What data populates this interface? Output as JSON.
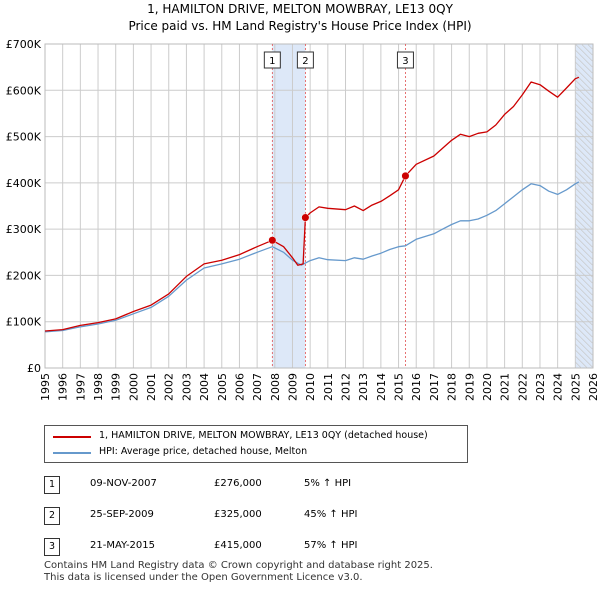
{
  "title": "1, HAMILTON DRIVE, MELTON MOWBRAY, LE13 0QY",
  "subtitle": "Price paid vs. HM Land Registry's House Price Index (HPI)",
  "colors": {
    "property": "#cc0000",
    "hpi": "#6699cc",
    "shade": "#dde8f8",
    "grid": "#cccccc"
  },
  "chart_data": {
    "type": "line",
    "title": "1, HAMILTON DRIVE, MELTON MOWBRAY, LE13 0QY",
    "subtitle": "Price paid vs. HM Land Registry's House Price Index (HPI)",
    "xlim": [
      1995,
      2026
    ],
    "ylim": [
      0,
      700000
    ],
    "y_ticks": [
      0,
      100000,
      200000,
      300000,
      400000,
      500000,
      600000,
      700000
    ],
    "y_tick_labels": [
      "£0",
      "£100K",
      "£200K",
      "£300K",
      "£400K",
      "£500K",
      "£600K",
      "£700K"
    ],
    "x_ticks": [
      "1995",
      "1996",
      "1997",
      "1998",
      "1999",
      "2000",
      "2001",
      "2002",
      "2003",
      "2004",
      "2005",
      "2006",
      "2007",
      "2008",
      "2009",
      "2010",
      "2011",
      "2012",
      "2013",
      "2014",
      "2015",
      "2016",
      "2017",
      "2018",
      "2019",
      "2020",
      "2021",
      "2022",
      "2023",
      "2024",
      "2025",
      "2026"
    ],
    "grid": true,
    "shaded_ranges": [
      [
        2007.86,
        2009.73
      ],
      [
        2025.0,
        2026.0
      ]
    ],
    "series": [
      {
        "name": "1, HAMILTON DRIVE, MELTON MOWBRAY, LE13 0QY (detached house)",
        "points": [
          [
            1995.0,
            80000
          ],
          [
            1996.0,
            83000
          ],
          [
            1997.0,
            92000
          ],
          [
            1998.0,
            98000
          ],
          [
            1999.0,
            106000
          ],
          [
            2000.0,
            122000
          ],
          [
            2001.0,
            136000
          ],
          [
            2002.0,
            160000
          ],
          [
            2003.0,
            198000
          ],
          [
            2004.0,
            225000
          ],
          [
            2005.0,
            233000
          ],
          [
            2006.0,
            245000
          ],
          [
            2007.0,
            262000
          ],
          [
            2007.86,
            276000
          ],
          [
            2008.5,
            262000
          ],
          [
            2009.0,
            238000
          ],
          [
            2009.3,
            222000
          ],
          [
            2009.6,
            225000
          ],
          [
            2009.73,
            325000
          ],
          [
            2010.0,
            335000
          ],
          [
            2010.5,
            348000
          ],
          [
            2011.0,
            345000
          ],
          [
            2012.0,
            342000
          ],
          [
            2012.5,
            350000
          ],
          [
            2013.0,
            340000
          ],
          [
            2013.5,
            352000
          ],
          [
            2014.0,
            360000
          ],
          [
            2014.5,
            372000
          ],
          [
            2015.0,
            385000
          ],
          [
            2015.39,
            415000
          ],
          [
            2016.0,
            440000
          ],
          [
            2017.0,
            458000
          ],
          [
            2017.5,
            475000
          ],
          [
            2018.0,
            492000
          ],
          [
            2018.5,
            505000
          ],
          [
            2019.0,
            500000
          ],
          [
            2019.5,
            507000
          ],
          [
            2020.0,
            510000
          ],
          [
            2020.5,
            525000
          ],
          [
            2021.0,
            548000
          ],
          [
            2021.5,
            565000
          ],
          [
            2022.0,
            590000
          ],
          [
            2022.5,
            618000
          ],
          [
            2023.0,
            612000
          ],
          [
            2023.5,
            598000
          ],
          [
            2024.0,
            585000
          ],
          [
            2024.5,
            605000
          ],
          [
            2025.0,
            625000
          ],
          [
            2025.2,
            628000
          ]
        ]
      },
      {
        "name": "HPI: Average price, detached house, Melton",
        "points": [
          [
            1995.0,
            78000
          ],
          [
            1996.0,
            81000
          ],
          [
            1997.0,
            89000
          ],
          [
            1998.0,
            95000
          ],
          [
            1999.0,
            103000
          ],
          [
            2000.0,
            117000
          ],
          [
            2001.0,
            131000
          ],
          [
            2002.0,
            155000
          ],
          [
            2003.0,
            190000
          ],
          [
            2004.0,
            216000
          ],
          [
            2005.0,
            225000
          ],
          [
            2006.0,
            235000
          ],
          [
            2007.0,
            250000
          ],
          [
            2007.86,
            262000
          ],
          [
            2008.5,
            250000
          ],
          [
            2009.0,
            233000
          ],
          [
            2009.5,
            222000
          ],
          [
            2010.0,
            232000
          ],
          [
            2010.5,
            238000
          ],
          [
            2011.0,
            234000
          ],
          [
            2012.0,
            232000
          ],
          [
            2012.5,
            238000
          ],
          [
            2013.0,
            235000
          ],
          [
            2013.5,
            242000
          ],
          [
            2014.0,
            248000
          ],
          [
            2014.5,
            256000
          ],
          [
            2015.0,
            262000
          ],
          [
            2015.39,
            264000
          ],
          [
            2016.0,
            278000
          ],
          [
            2017.0,
            290000
          ],
          [
            2017.5,
            300000
          ],
          [
            2018.0,
            310000
          ],
          [
            2018.5,
            318000
          ],
          [
            2019.0,
            318000
          ],
          [
            2019.5,
            322000
          ],
          [
            2020.0,
            330000
          ],
          [
            2020.5,
            340000
          ],
          [
            2021.0,
            355000
          ],
          [
            2021.5,
            370000
          ],
          [
            2022.0,
            385000
          ],
          [
            2022.5,
            398000
          ],
          [
            2023.0,
            394000
          ],
          [
            2023.5,
            382000
          ],
          [
            2024.0,
            375000
          ],
          [
            2024.5,
            385000
          ],
          [
            2025.0,
            398000
          ],
          [
            2025.2,
            402000
          ]
        ]
      }
    ],
    "sales": [
      {
        "label": "1",
        "x": 2007.86,
        "y": 276000
      },
      {
        "label": "2",
        "x": 2009.73,
        "y": 325000
      },
      {
        "label": "3",
        "x": 2015.39,
        "y": 415000
      }
    ]
  },
  "legend": {
    "property_label": "1, HAMILTON DRIVE, MELTON MOWBRAY, LE13 0QY (detached house)",
    "hpi_label": "HPI: Average price, detached house, Melton"
  },
  "transactions": [
    {
      "num": "1",
      "date": "09-NOV-2007",
      "price": "£276,000",
      "hpi": "5% ↑ HPI"
    },
    {
      "num": "2",
      "date": "25-SEP-2009",
      "price": "£325,000",
      "hpi": "45% ↑ HPI"
    },
    {
      "num": "3",
      "date": "21-MAY-2015",
      "price": "£415,000",
      "hpi": "57% ↑ HPI"
    }
  ],
  "footer": {
    "line1": "Contains HM Land Registry data © Crown copyright and database right 2025.",
    "line2": "This data is licensed under the Open Government Licence v3.0."
  }
}
